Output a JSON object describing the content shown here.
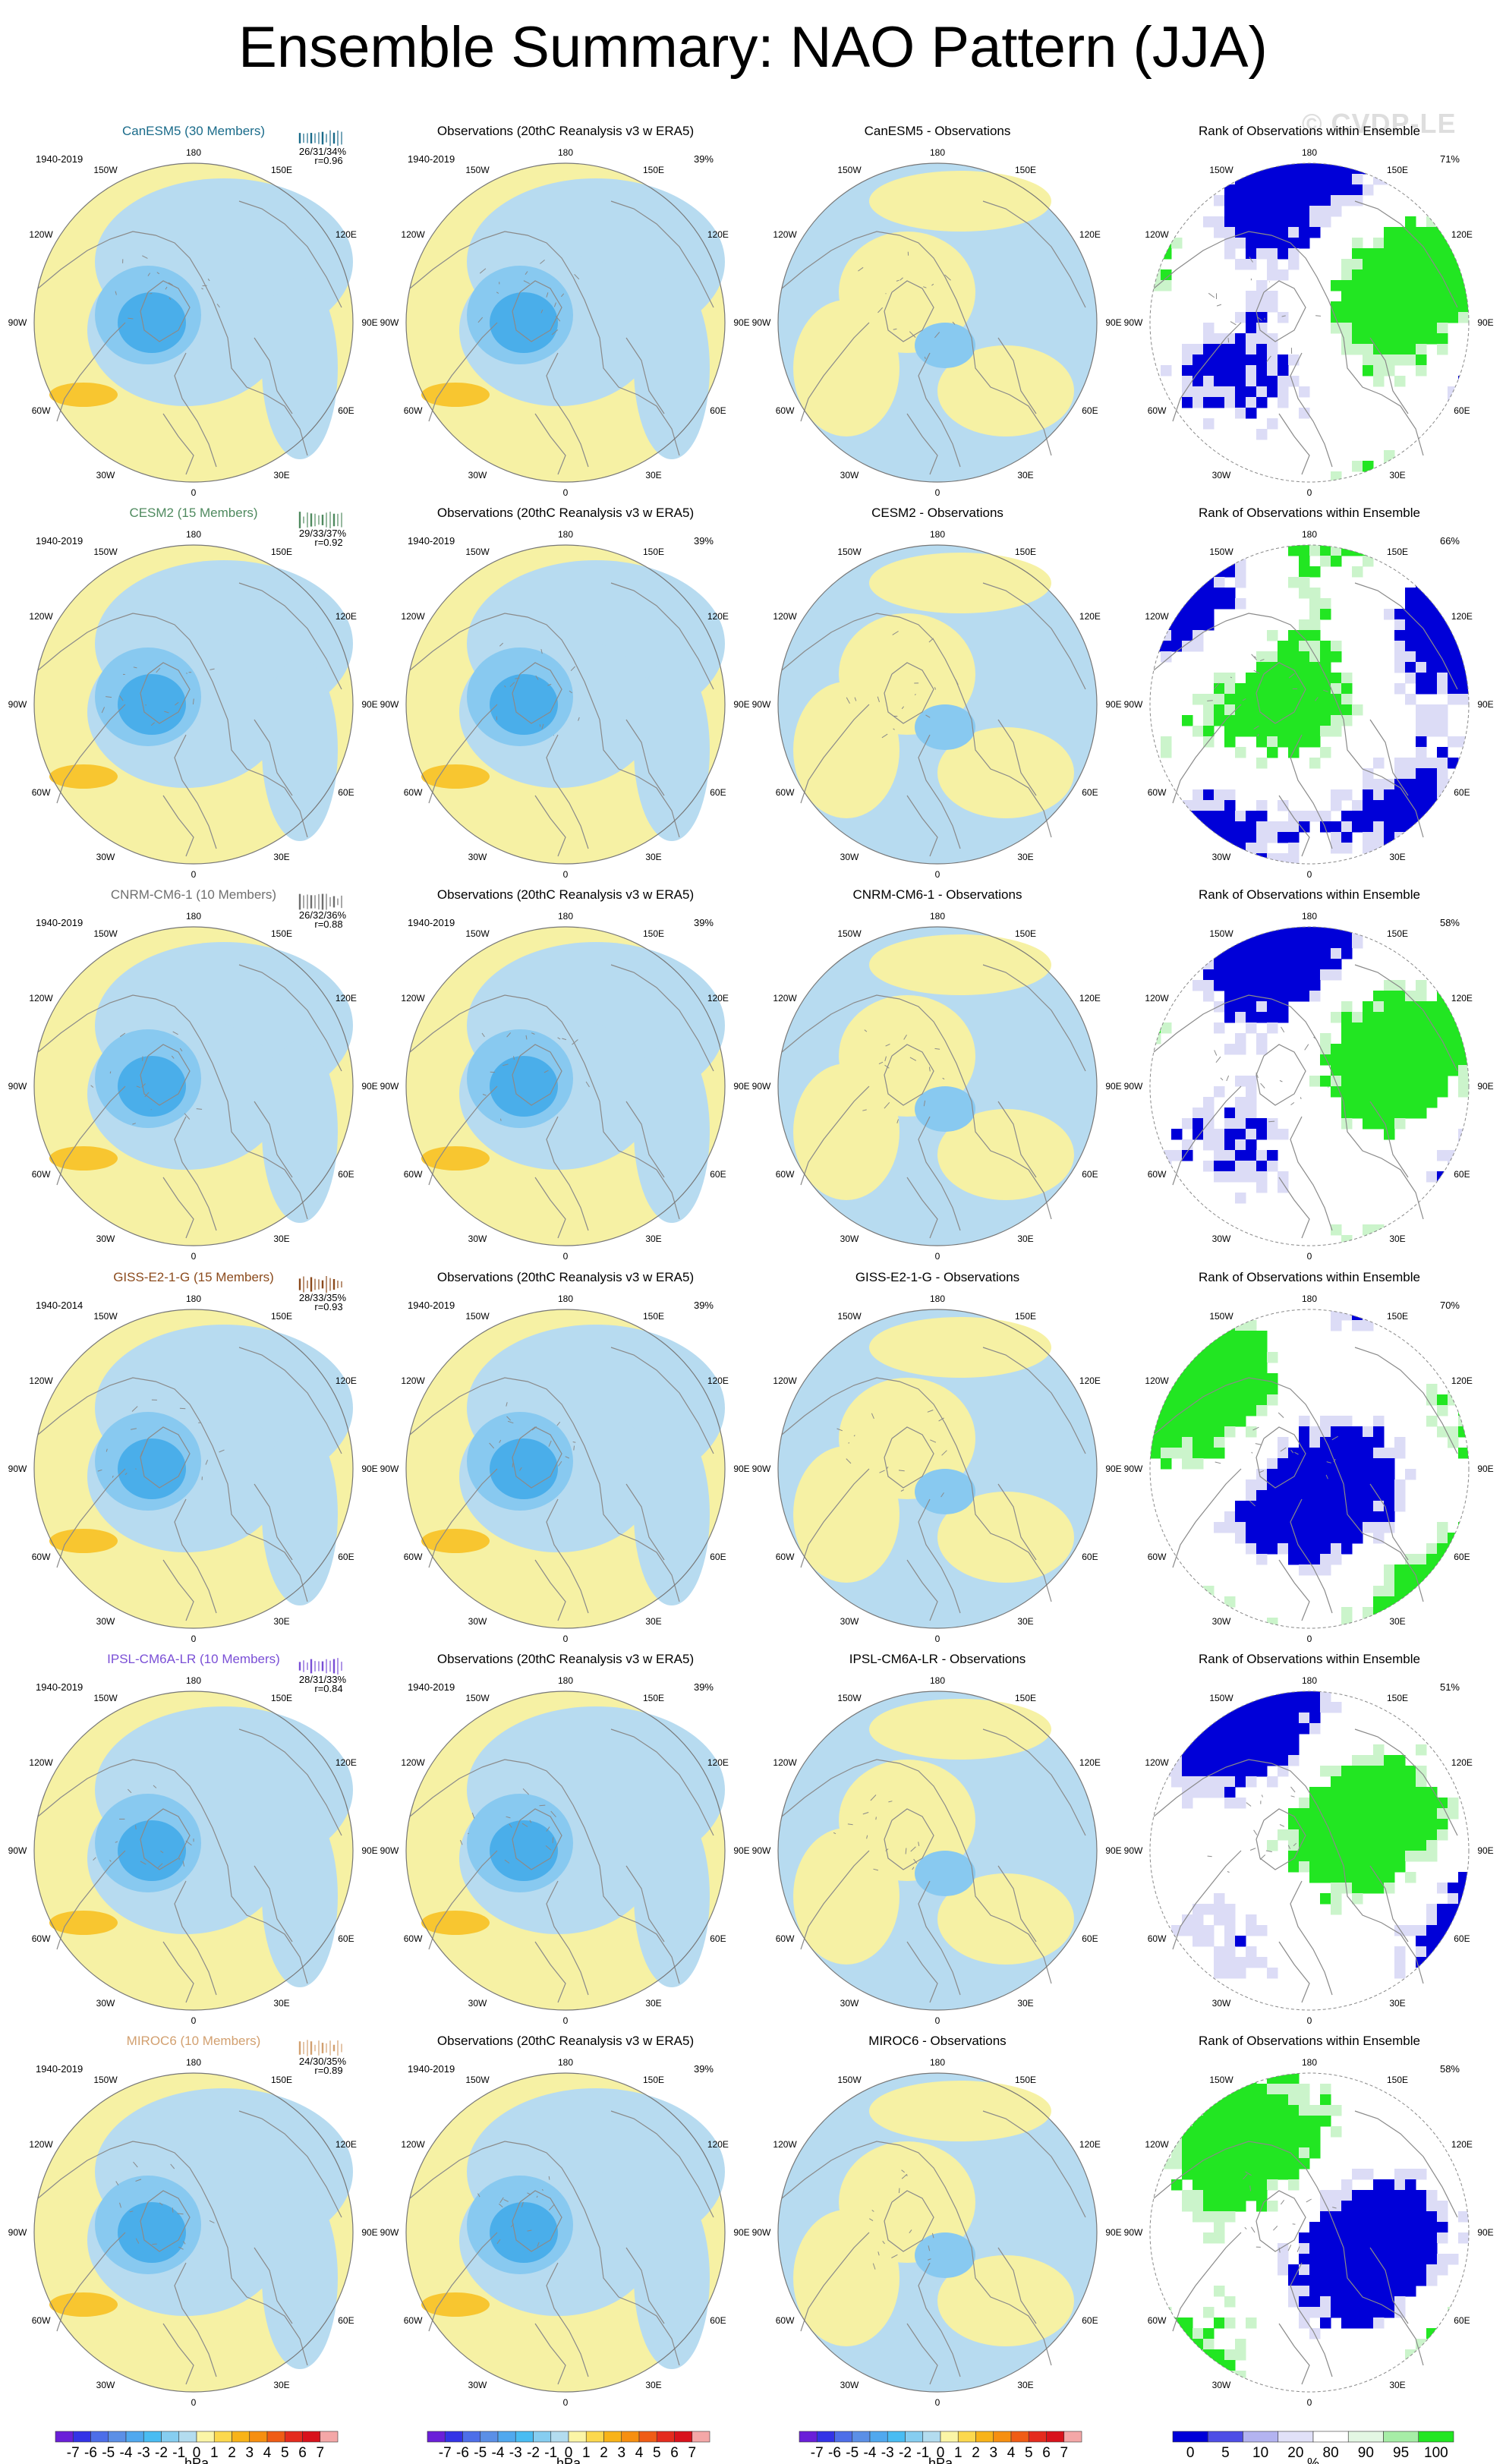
{
  "title": "Ensemble Summary: NAO Pattern (JJA)",
  "watermark": "© CVDP-LE",
  "columns": {
    "obs_title": "Observations (20thC Reanalysis v3 w ERA5)",
    "diff_suffix": " - Observations",
    "rank_title": "Rank of Observations within Ensemble"
  },
  "longitude_labels": [
    "180",
    "150E",
    "120E",
    "90E",
    "60E",
    "30E",
    "0",
    "30W",
    "60W",
    "90W",
    "120W",
    "150W"
  ],
  "rows": [
    {
      "model": "CanESM5",
      "model_label": "CanESM5 (30 Members)",
      "color": "#1a6b8a",
      "period": "1940-2019",
      "obs_period": "1940-2019",
      "pcts": "26/31/34%",
      "corr": "r=0.96",
      "obs_pct": "39%",
      "rank_pct": "71%"
    },
    {
      "model": "CESM2",
      "model_label": "CESM2 (15 Members)",
      "color": "#4f8a5f",
      "period": "1940-2019",
      "obs_period": "1940-2019",
      "pcts": "29/33/37%",
      "corr": "r=0.92",
      "obs_pct": "39%",
      "rank_pct": "66%"
    },
    {
      "model": "CNRM-CM6-1",
      "model_label": "CNRM-CM6-1 (10 Members)",
      "color": "#6f6f6f",
      "period": "1940-2019",
      "obs_period": "1940-2019",
      "pcts": "26/32/36%",
      "corr": "r=0.88",
      "obs_pct": "39%",
      "rank_pct": "58%"
    },
    {
      "model": "GISS-E2-1-G",
      "model_label": "GISS-E2-1-G (15 Members)",
      "color": "#8b4a1c",
      "period": "1940-2014",
      "obs_period": "1940-2019",
      "pcts": "28/33/35%",
      "corr": "r=0.93",
      "obs_pct": "39%",
      "rank_pct": "70%"
    },
    {
      "model": "IPSL-CM6A-LR",
      "model_label": "IPSL-CM6A-LR (10 Members)",
      "color": "#7a4fd6",
      "period": "1940-2019",
      "obs_period": "1940-2019",
      "pcts": "28/31/33%",
      "corr": "r=0.84",
      "obs_pct": "39%",
      "rank_pct": "51%"
    },
    {
      "model": "MIROC6",
      "model_label": "MIROC6 (10 Members)",
      "color": "#d2a070",
      "period": "1940-2019",
      "obs_period": "1940-2019",
      "pcts": "24/30/35%",
      "corr": "r=0.89",
      "obs_pct": "39%",
      "rank_pct": "58%"
    }
  ],
  "colorbar": {
    "labels": [
      "-7",
      "-6",
      "-5",
      "-4",
      "-3",
      "-2",
      "-1",
      "0",
      "1",
      "2",
      "3",
      "4",
      "5",
      "6",
      "7"
    ],
    "colors": [
      "#6a1fd8",
      "#3333e6",
      "#4d6ee8",
      "#5b8fe6",
      "#50a8ee",
      "#49bcf2",
      "#86cdf0",
      "#b3dcef",
      "#fbf5a6",
      "#fcd84d",
      "#f8b318",
      "#f68f10",
      "#ef5c15",
      "#e42b1e",
      "#d8121c",
      "#f4a7a7"
    ],
    "unit": "hPa"
  },
  "rank_colorbar": {
    "labels": [
      "0",
      "5",
      "10",
      "20",
      "80",
      "90",
      "95",
      "100"
    ],
    "colors": [
      "#0000d8",
      "#4d4de6",
      "#b3b3f0",
      "#e1e1f8",
      "#ffffff",
      "#e3f7e3",
      "#a6eda6",
      "#22e622"
    ],
    "unit": "%"
  },
  "map_colors": {
    "positive": "#f6f1a4",
    "negative": "#b7dbf0",
    "mid": "#88c9f0",
    "strong": "#4aaeea",
    "orange": "#f8c630",
    "land": "#8a8a8a",
    "rank_blue": "#0000d8",
    "rank_lightblue": "#dcdcf6",
    "rank_green": "#22e622",
    "rank_lightgreen": "#cbf4cb"
  }
}
